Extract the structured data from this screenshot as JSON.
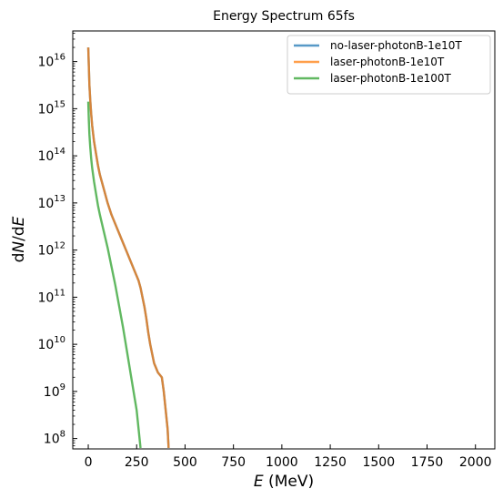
{
  "chart_data": {
    "type": "line",
    "title": "Energy Spectrum 65fs",
    "xlabel": "E (MeV)",
    "ylabel": "dN/dE",
    "xlim": [
      -80,
      2100
    ],
    "ylim_log10": [
      7.78,
      16.65
    ],
    "yscale": "log",
    "x_ticks": [
      0,
      250,
      500,
      750,
      1000,
      1250,
      1500,
      1750,
      2000
    ],
    "y_ticks_exp": [
      8,
      9,
      10,
      11,
      12,
      13,
      14,
      15,
      16
    ],
    "legend_position": "upper right",
    "grid": false,
    "series": [
      {
        "name": "no-laser-photonB-1e10T",
        "color": "#1f77b4",
        "x": [
          0,
          3,
          6,
          10,
          15,
          20,
          30,
          40,
          50,
          60,
          80,
          100,
          120,
          140,
          160,
          180,
          200,
          220,
          240,
          250,
          260,
          270,
          280,
          290,
          300,
          310,
          320,
          330,
          340,
          350,
          360,
          370,
          380,
          390,
          400,
          410,
          415
        ],
        "y_log10": [
          16.3,
          15.9,
          15.5,
          15.2,
          14.9,
          14.65,
          14.3,
          14.05,
          13.8,
          13.6,
          13.3,
          13.0,
          12.75,
          12.55,
          12.35,
          12.15,
          11.95,
          11.75,
          11.55,
          11.45,
          11.35,
          11.2,
          11.0,
          10.8,
          10.55,
          10.25,
          10.0,
          9.8,
          9.6,
          9.5,
          9.4,
          9.35,
          9.3,
          9.0,
          8.6,
          8.2,
          7.8
        ]
      },
      {
        "name": "laser-photonB-1e10T",
        "color": "#ff7f0e",
        "x": [
          0,
          3,
          6,
          10,
          15,
          20,
          30,
          40,
          50,
          60,
          80,
          100,
          120,
          140,
          160,
          180,
          200,
          220,
          240,
          250,
          260,
          270,
          280,
          290,
          300,
          310,
          320,
          330,
          340,
          350,
          360,
          370,
          380,
          390,
          400,
          410,
          415
        ],
        "y_log10": [
          16.3,
          15.9,
          15.5,
          15.2,
          14.9,
          14.65,
          14.3,
          14.05,
          13.8,
          13.6,
          13.3,
          13.0,
          12.75,
          12.55,
          12.35,
          12.15,
          11.95,
          11.75,
          11.55,
          11.45,
          11.35,
          11.2,
          11.0,
          10.8,
          10.55,
          10.25,
          10.0,
          9.8,
          9.6,
          9.5,
          9.4,
          9.35,
          9.3,
          9.0,
          8.6,
          8.2,
          7.8
        ]
      },
      {
        "name": "laser-photonB-1e100T",
        "color": "#2ca02c",
        "x": [
          0,
          3,
          6,
          10,
          15,
          20,
          30,
          40,
          50,
          60,
          80,
          100,
          120,
          140,
          160,
          180,
          190,
          200,
          210,
          220,
          230,
          240,
          250,
          260,
          270
        ],
        "y_log10": [
          15.15,
          14.75,
          14.45,
          14.2,
          13.95,
          13.75,
          13.45,
          13.2,
          12.95,
          12.75,
          12.4,
          12.05,
          11.65,
          11.25,
          10.8,
          10.35,
          10.1,
          9.85,
          9.6,
          9.35,
          9.1,
          8.85,
          8.6,
          8.2,
          7.8
        ]
      }
    ]
  }
}
